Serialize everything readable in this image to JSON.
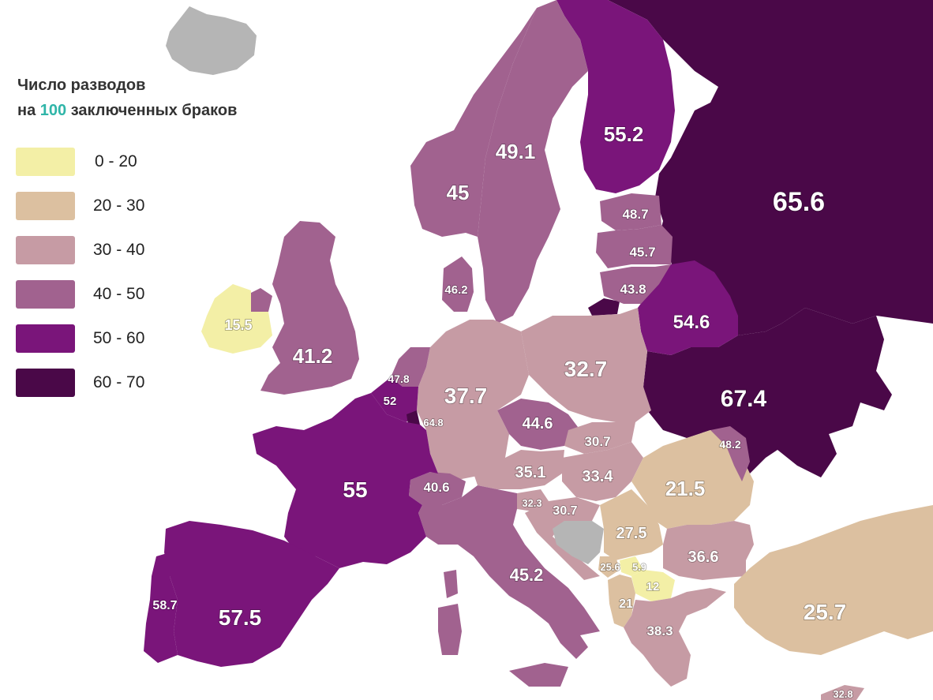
{
  "legend": {
    "title_line1": "Число разводов",
    "title_line2_prefix": "на ",
    "title_line2_highlight": "100",
    "title_line2_suffix": " заключенных браков",
    "items": [
      {
        "label": "0 - 20",
        "color": "#f3efa6"
      },
      {
        "label": "20 - 30",
        "color": "#dcc0a0"
      },
      {
        "label": "30 - 40",
        "color": "#c69ba4"
      },
      {
        "label": "40 - 50",
        "color": "#a1628f"
      },
      {
        "label": "50 - 60",
        "color": "#7a157a"
      },
      {
        "label": "60 - 70",
        "color": "#4a0848"
      }
    ]
  },
  "countries": {
    "russia": "65.6",
    "ukraine": "67.4",
    "belarus": "54.6",
    "finland": "55.2",
    "sweden": "49.1",
    "norway": "45",
    "estonia": "48.7",
    "latvia": "45.7",
    "lithuania": "43.8",
    "poland": "32.7",
    "germany": "37.7",
    "denmark": "46.2",
    "netherlands": "47.8",
    "belgium": "52",
    "luxembourg": "64.8",
    "uk": "41.2",
    "ireland": "15.5",
    "france": "55",
    "spain": "57.5",
    "portugal": "58.7",
    "czech": "44.6",
    "slovakia": "30.7",
    "austria": "35.1",
    "hungary": "33.4",
    "switzerland": "40.6",
    "slovenia": "32.3",
    "croatia": "30.7",
    "italy": "45.2",
    "romania": "21.5",
    "moldova": "48.2",
    "serbia": "27.5",
    "bulgaria": "36.6",
    "montenegro": "25.6",
    "kosovo": "5.9",
    "macedonia": "12",
    "albania": "21",
    "greece": "38.3",
    "turkey": "25.7",
    "cyprus": "32.8"
  }
}
